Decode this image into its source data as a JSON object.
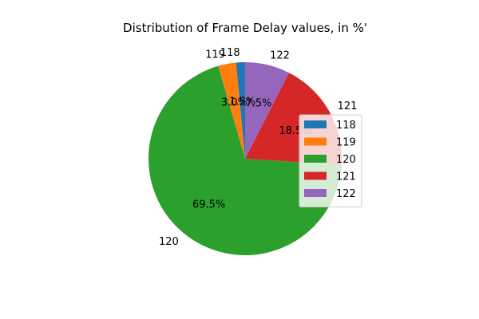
{
  "chart_data": {
    "type": "pie",
    "title": "Distribution of Frame Delay values, in %'",
    "legend_position": "right",
    "slices": [
      {
        "label": "118",
        "value": 1.5,
        "pct_label": "1.5%",
        "color": "#1f77b4"
      },
      {
        "label": "119",
        "value": 3.0,
        "pct_label": "3.0%",
        "color": "#ff7f0e"
      },
      {
        "label": "120",
        "value": 69.5,
        "pct_label": "69.5%",
        "color": "#2ca02c"
      },
      {
        "label": "121",
        "value": 18.5,
        "pct_label": "18.5%",
        "color": "#d62728"
      },
      {
        "label": "122",
        "value": 7.5,
        "pct_label": "7.5%",
        "color": "#9467bd"
      }
    ]
  }
}
